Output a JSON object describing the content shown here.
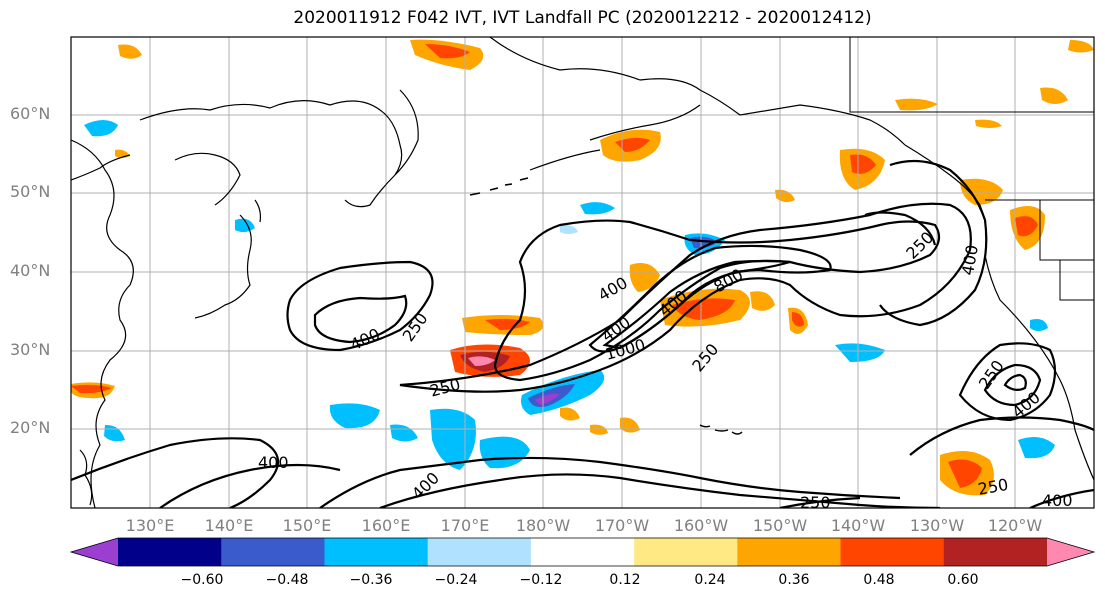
{
  "title": "2020011912 F042 IVT, IVT Landfall PC (2020012212 - 2020012412)",
  "lat_labels": [
    "60°N",
    "50°N",
    "40°N",
    "30°N",
    "20°N"
  ],
  "lon_labels": [
    "130°E",
    "140°E",
    "150°E",
    "160°E",
    "170°E",
    "180°W",
    "170°W",
    "160°W",
    "150°W",
    "140°W",
    "130°W",
    "120°W"
  ],
  "contour_labels": [
    "400",
    "250",
    "250",
    "400",
    "800",
    "400",
    "1000",
    "250",
    "250",
    "400",
    "250",
    "400",
    "400",
    "400",
    "250",
    "400",
    "250",
    "400"
  ],
  "colorbar": {
    "colors": [
      "#9a3fd0",
      "#00008b",
      "#3a5bcc",
      "#00bfff",
      "#b0e2ff",
      "#ffffff",
      "#ffe985",
      "#ffa500",
      "#ff4500",
      "#b22222",
      "#ff88b0"
    ],
    "ticks": [
      "−0.60",
      "−0.48",
      "−0.36",
      "−0.24",
      "−0.12",
      "0.12",
      "0.24",
      "0.36",
      "0.48",
      "0.60"
    ]
  }
}
